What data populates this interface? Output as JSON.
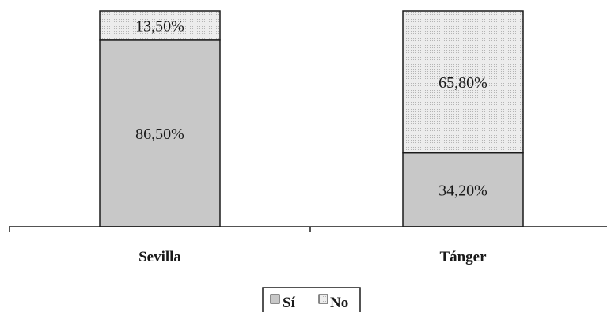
{
  "chart_data": {
    "type": "bar",
    "stacked": true,
    "percent": true,
    "categories": [
      "Sevilla",
      "Tánger"
    ],
    "series": [
      {
        "name": "Sí",
        "values": [
          86.5,
          34.2
        ],
        "labels": [
          "86,50%",
          "34,20%"
        ]
      },
      {
        "name": "No",
        "values": [
          13.5,
          65.8
        ],
        "labels": [
          "13,50%",
          "65,80%"
        ]
      }
    ],
    "ylim": [
      0,
      100
    ],
    "grid": false,
    "legend_position": "bottom",
    "colors": {
      "si_fill": "#c8c8c8",
      "no_fill": "#ececec",
      "no_dots": "#b4b4b4",
      "outline": "#1a1a1a"
    }
  }
}
